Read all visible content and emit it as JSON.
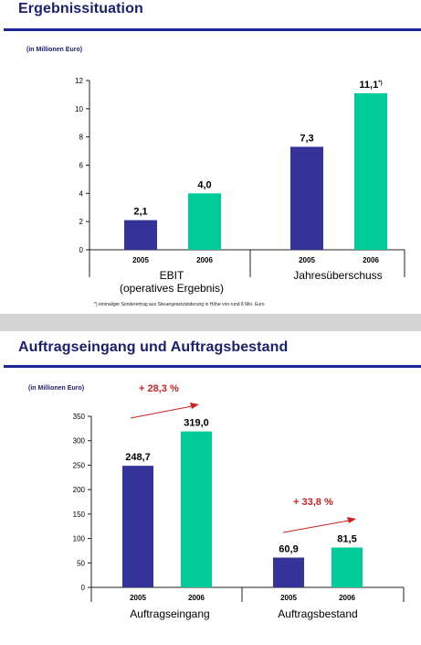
{
  "colors": {
    "bar_2005": "#333399",
    "bar_2006": "#00cc99",
    "title": "#1a1f6e",
    "rule": "#1a2a9a",
    "growth": "#cc2222"
  },
  "slide1": {
    "title": "Ergebnissituation",
    "unit_note": "(in Millionen Euro)",
    "footnote": "*) einmaliger Sonderertrag aus Steuergesetzänderung in Höhe von rund 8 Mio. Euro"
  },
  "slide2": {
    "title": "Auftragseingang und Auftragsbestand",
    "unit_note": "(in Millionen Euro)",
    "growth_labels": [
      "+ 28,3 %",
      "+ 33,8 %"
    ]
  },
  "chart_data": [
    {
      "type": "bar",
      "title": "",
      "ylim": [
        0,
        12
      ],
      "yticks": [
        "0",
        "2",
        "4",
        "6",
        "8",
        "10",
        "12"
      ],
      "groups": [
        {
          "label": [
            "EBIT",
            "(operatives Ergebnis)"
          ],
          "bars": [
            {
              "year": "2005",
              "value": 2.1,
              "label": "2,1"
            },
            {
              "year": "2006",
              "value": 4.0,
              "label": "4,0"
            }
          ]
        },
        {
          "label": [
            "Jahresüberschuss"
          ],
          "bars": [
            {
              "year": "2005",
              "value": 7.3,
              "label": "7,3"
            },
            {
              "year": "2006",
              "value": 11.1,
              "label": "11,1*)"
            }
          ]
        }
      ]
    },
    {
      "type": "bar",
      "title": "",
      "ylim": [
        0,
        350
      ],
      "yticks": [
        "0",
        "50",
        "100",
        "150",
        "200",
        "250",
        "300",
        "350"
      ],
      "groups": [
        {
          "label": [
            "Auftragseingang"
          ],
          "bars": [
            {
              "year": "2005",
              "value": 248.7,
              "label": "248,7"
            },
            {
              "year": "2006",
              "value": 319.0,
              "label": "319,0"
            }
          ]
        },
        {
          "label": [
            "Auftragsbestand"
          ],
          "bars": [
            {
              "year": "2005",
              "value": 60.9,
              "label": "60,9"
            },
            {
              "year": "2006",
              "value": 81.5,
              "label": "81,5"
            }
          ]
        }
      ]
    }
  ]
}
